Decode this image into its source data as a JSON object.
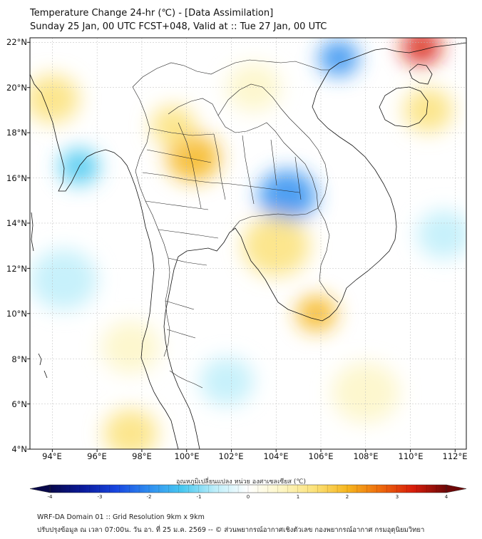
{
  "title": {
    "line1": "Temperature Change 24-hr (℃) - [Data Assimilation]",
    "line2": "Sunday 25 Jan, 00 UTC FCST+048, Valid at :: Tue 27 Jan, 00 UTC"
  },
  "map": {
    "lon_range": [
      93,
      112.5
    ],
    "lat_range": [
      4,
      22.2
    ],
    "lat_labels": [
      "22°N",
      "20°N",
      "18°N",
      "16°N",
      "14°N",
      "12°N",
      "10°N",
      "8°N",
      "6°N",
      "4°N"
    ],
    "lat_values": [
      22,
      20,
      18,
      16,
      14,
      12,
      10,
      8,
      6,
      4
    ],
    "lon_labels": [
      "94°E",
      "96°E",
      "98°E",
      "100°E",
      "102°E",
      "104°E",
      "106°E",
      "108°E",
      "110°E",
      "112°E"
    ],
    "lon_values": [
      94,
      96,
      98,
      100,
      102,
      104,
      106,
      108,
      110,
      112
    ],
    "field_blobs": [
      {
        "lon": 94.0,
        "lat": 19.5,
        "v": 1.5,
        "r": 1.2
      },
      {
        "lon": 95.2,
        "lat": 16.5,
        "v": -1.5,
        "r": 0.9
      },
      {
        "lon": 100.3,
        "lat": 16.9,
        "v": 1.7,
        "r": 1.2
      },
      {
        "lon": 99.4,
        "lat": 18.3,
        "v": 1.1,
        "r": 1.0
      },
      {
        "lon": 104.5,
        "lat": 15.2,
        "v": -1.7,
        "r": 1.3
      },
      {
        "lon": 106.8,
        "lat": 21.3,
        "v": -2.0,
        "r": 0.9
      },
      {
        "lon": 110.5,
        "lat": 21.8,
        "v": 3.0,
        "r": 0.9
      },
      {
        "lon": 110.8,
        "lat": 19.0,
        "v": 1.2,
        "r": 1.1
      },
      {
        "lon": 104.0,
        "lat": 13.0,
        "v": 1.0,
        "r": 1.5
      },
      {
        "lon": 105.8,
        "lat": 10.0,
        "v": 1.7,
        "r": 0.9
      },
      {
        "lon": 97.5,
        "lat": 4.7,
        "v": 1.5,
        "r": 1.2
      },
      {
        "lon": 101.8,
        "lat": 7.0,
        "v": -0.8,
        "r": 1.2
      },
      {
        "lon": 108.0,
        "lat": 6.5,
        "v": 0.8,
        "r": 1.5
      },
      {
        "lon": 111.5,
        "lat": 13.5,
        "v": -0.9,
        "r": 1.2
      },
      {
        "lon": 94.5,
        "lat": 11.5,
        "v": -0.5,
        "r": 1.5
      },
      {
        "lon": 103.0,
        "lat": 20.0,
        "v": 0.6,
        "r": 1.2
      },
      {
        "lon": 97.5,
        "lat": 8.5,
        "v": 0.5,
        "r": 1.3
      }
    ]
  },
  "colorbar": {
    "title": "อุณหภูมิเปลี่ยนแปลง หน่วย องศาเซลเซียส (℃)",
    "min": -4,
    "max": 4,
    "tick_values": [
      -4,
      -3,
      -2,
      -1,
      0,
      1,
      2,
      3,
      4
    ],
    "tick_labels": [
      "-4",
      "-3",
      "-2",
      "-1",
      "0",
      "1",
      "2",
      "3",
      "4"
    ],
    "colors": [
      "#08084a",
      "#0a1a9c",
      "#1846e0",
      "#2f8ef0",
      "#48c8f0",
      "#bdeefa",
      "#ffffff",
      "#fdf6c6",
      "#fbe27a",
      "#f6b61e",
      "#ee6a0c",
      "#d81c0a",
      "#6e0808"
    ]
  },
  "footer": {
    "line1": "WRF-DA Domain 01 :: Grid Resolution 9km x 9km",
    "line2": "ปรับปรุงข้อมูล ณ เวลา 07:00น. วัน อา. ที่ 25 ม.ค. 2569 -- © ส่วนพยากรณ์อากาศเชิงตัวเลข กองพยากรณ์อากาศ กรมอุตุนิยมวิทยา"
  }
}
